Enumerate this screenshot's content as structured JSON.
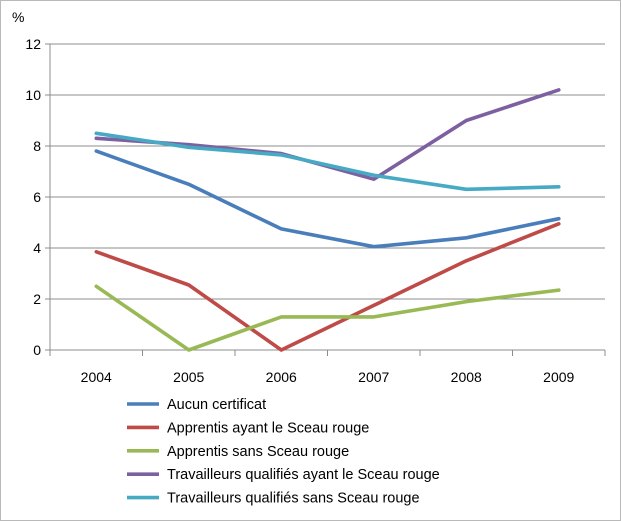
{
  "chart_data": {
    "type": "line",
    "title": "",
    "xlabel": "",
    "ylabel": "%",
    "categories": [
      "2004",
      "2005",
      "2006",
      "2007",
      "2008",
      "2009"
    ],
    "ylim": [
      0,
      12
    ],
    "yticks": [
      "0",
      "2",
      "4",
      "6",
      "8",
      "10",
      "12"
    ],
    "grid": true,
    "legend_position": "bottom",
    "series": [
      {
        "name": "Aucun certificat",
        "color": "#4a7ebb",
        "values": [
          7.8,
          6.5,
          4.75,
          4.05,
          4.4,
          5.15
        ]
      },
      {
        "name": "Apprentis ayant le Sceau rouge",
        "color": "#be4b48",
        "values": [
          3.85,
          2.55,
          0.0,
          1.75,
          3.5,
          4.95
        ]
      },
      {
        "name": "Apprentis sans Sceau rouge",
        "color": "#98b954",
        "values": [
          2.5,
          0.0,
          1.3,
          1.3,
          1.9,
          2.35
        ]
      },
      {
        "name": "Travailleurs qualifiés ayant le Sceau rouge",
        "color": "#7d60a0",
        "values": [
          8.3,
          8.05,
          7.7,
          6.7,
          9.0,
          10.2
        ]
      },
      {
        "name": "Travailleurs qualifiés sans Sceau rouge",
        "color": "#46aac5",
        "values": [
          8.5,
          7.95,
          7.65,
          6.85,
          6.3,
          6.4
        ]
      }
    ]
  }
}
